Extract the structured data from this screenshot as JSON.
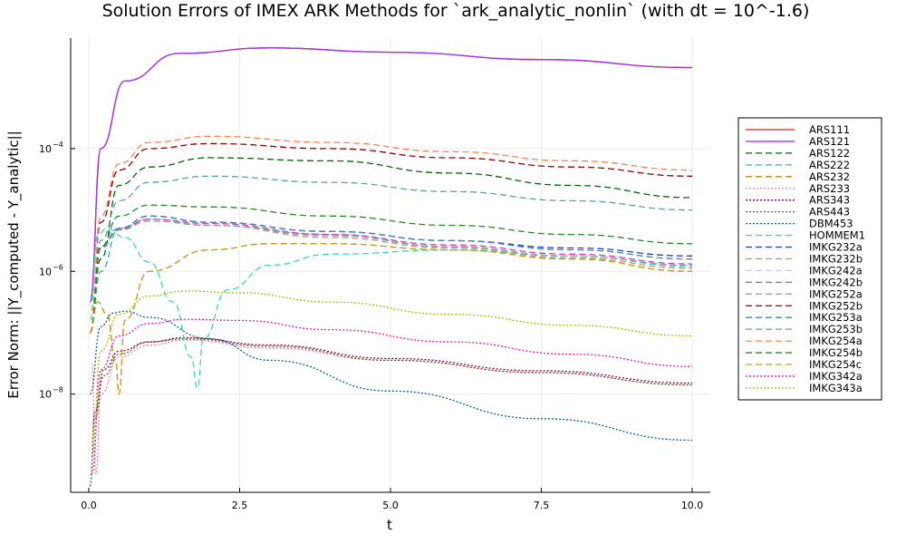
{
  "chart_data": {
    "type": "line",
    "title": "Solution Errors of IMEX ARK Methods for `ark_analytic_nonlin` (with dt = 10^-1.6)",
    "xlabel": "t",
    "ylabel": "Error Norm: ||Y_computed - Y_analytic||",
    "xlim": [
      -0.3,
      10.3
    ],
    "ylim_log10": [
      -9.6,
      -2.2
    ],
    "y_scale": "log",
    "grid": true,
    "legend_position": "right",
    "x_ticks": [
      0.0,
      2.5,
      5.0,
      7.5,
      10.0
    ],
    "x_tick_labels": [
      "0.0",
      "2.5",
      "5.0",
      "7.5",
      "10.0"
    ],
    "y_ticks_log10": [
      -4,
      -6,
      -8
    ],
    "y_tick_labels": [
      "10",
      "10",
      "10"
    ],
    "y_tick_exponents": [
      "−4",
      "−6",
      "−8"
    ],
    "series": [
      {
        "name": "ARS111",
        "color": "#e41a1c",
        "dash": "solid",
        "x": [
          0.02,
          0.2,
          0.6,
          1.5,
          3,
          5,
          7.5,
          10
        ],
        "log10y": [
          -6.5,
          -4.0,
          -2.9,
          -2.45,
          -2.36,
          -2.43,
          -2.55,
          -2.68
        ]
      },
      {
        "name": "ARS121",
        "color": "#9b30ff",
        "dash": "solid",
        "x": [
          0.02,
          0.2,
          0.6,
          1.5,
          3,
          5,
          7.5,
          10
        ],
        "log10y": [
          -6.5,
          -4.0,
          -2.9,
          -2.45,
          -2.36,
          -2.43,
          -2.55,
          -2.68
        ]
      },
      {
        "name": "ARS122",
        "color": "#006400",
        "dash": "dashed",
        "x": [
          0.02,
          0.2,
          0.5,
          1,
          2,
          4,
          6,
          8,
          10
        ],
        "log10y": [
          -7,
          -5.8,
          -4.6,
          -4.3,
          -4.15,
          -4.2,
          -4.4,
          -4.6,
          -4.8
        ]
      },
      {
        "name": "ARS222",
        "color": "#2bb5b0",
        "dash": "dashed",
        "x": [
          0.02,
          0.2,
          0.5,
          1,
          2,
          4,
          6,
          8,
          10
        ],
        "log10y": [
          -7,
          -6,
          -5.3,
          -5.15,
          -5.25,
          -5.4,
          -5.6,
          -5.75,
          -5.9
        ]
      },
      {
        "name": "ARS232",
        "color": "#b8860b",
        "dash": "dashed",
        "x": [
          0.02,
          0.15,
          0.3,
          0.45,
          0.5,
          0.6,
          1,
          2,
          3,
          4,
          6,
          8,
          10
        ],
        "log10y": [
          -7,
          -6.5,
          -6.7,
          -7.5,
          -8.0,
          -6.8,
          -6.0,
          -5.65,
          -5.55,
          -5.55,
          -5.65,
          -5.8,
          -6.0
        ]
      },
      {
        "name": "ARS233",
        "color": "#ff77aa",
        "dash": "dotted",
        "x": [
          0.05,
          0.12,
          0.2,
          0.5,
          1,
          1.6,
          3,
          5,
          7.5,
          10
        ],
        "log10y": [
          -7.5,
          -9.3,
          -8.0,
          -7.4,
          -7.2,
          -7.12,
          -7.25,
          -7.45,
          -7.65,
          -7.85
        ]
      },
      {
        "name": "ARS343",
        "color": "#8b0045",
        "dash": "dotted",
        "x": [
          0.02,
          0.1,
          0.25,
          0.5,
          1,
          1.6,
          3,
          5,
          7.5,
          10
        ],
        "log10y": [
          -9.5,
          -8.3,
          -7.6,
          -7.3,
          -7.15,
          -7.08,
          -7.2,
          -7.42,
          -7.62,
          -7.82
        ]
      },
      {
        "name": "ARS443",
        "color": "#556b2f",
        "dash": "dotted",
        "x": [
          0.02,
          0.1,
          0.25,
          0.5,
          1,
          1.6,
          3,
          5,
          7.5,
          10
        ],
        "log10y": [
          -9.5,
          -8.4,
          -7.7,
          -7.35,
          -7.15,
          -7.1,
          -7.22,
          -7.45,
          -7.65,
          -7.85
        ]
      },
      {
        "name": "DBM453",
        "color": "#00608a",
        "dash": "dotted",
        "x": [
          0.02,
          0.2,
          0.4,
          0.6,
          1,
          2,
          3,
          5,
          7.5,
          10
        ],
        "log10y": [
          -8,
          -6.9,
          -6.68,
          -6.65,
          -6.75,
          -7.1,
          -7.45,
          -7.95,
          -8.4,
          -8.75
        ]
      },
      {
        "name": "HOMMEM1",
        "color": "#3ad8b0",
        "dash": "dashed",
        "x": [
          0.02,
          0.15,
          0.3,
          0.6,
          1,
          1.4,
          1.7,
          1.8,
          1.9,
          2.3,
          3,
          4,
          6,
          8,
          10
        ],
        "log10y": [
          -6.8,
          -5.4,
          -5.3,
          -5.45,
          -5.85,
          -6.5,
          -7.4,
          -7.9,
          -7.1,
          -6.3,
          -5.9,
          -5.72,
          -5.65,
          -5.75,
          -5.9
        ]
      },
      {
        "name": "IMKG232a",
        "color": "#1e3cc8",
        "dash": "dashed",
        "x": [
          0.02,
          0.2,
          0.5,
          1,
          2,
          4,
          6,
          8,
          10
        ],
        "log10y": [
          -7,
          -5.6,
          -5.3,
          -5.1,
          -5.2,
          -5.35,
          -5.5,
          -5.62,
          -5.75
        ]
      },
      {
        "name": "IMKG232b",
        "color": "#b09a8a",
        "dash": "dashed",
        "x": [
          0.02,
          0.2,
          0.5,
          1,
          2,
          4,
          6,
          8,
          10
        ],
        "log10y": [
          -7,
          -5.62,
          -5.33,
          -5.18,
          -5.25,
          -5.45,
          -5.62,
          -5.78,
          -5.95
        ]
      },
      {
        "name": "IMKG242a",
        "color": "#c8c8f0",
        "dash": "dashed",
        "x": [
          0.02,
          0.2,
          0.5,
          1,
          2,
          4,
          6,
          8,
          10
        ],
        "log10y": [
          -7,
          -5.62,
          -5.32,
          -5.15,
          -5.22,
          -5.4,
          -5.57,
          -5.72,
          -5.88
        ]
      },
      {
        "name": "IMKG242b",
        "color": "#e040c0",
        "dash": "dashed",
        "x": [
          0.02,
          0.2,
          0.5,
          1,
          2,
          4,
          6,
          8,
          10
        ],
        "log10y": [
          -7,
          -5.62,
          -5.32,
          -5.15,
          -5.22,
          -5.4,
          -5.57,
          -5.72,
          -5.88
        ]
      },
      {
        "name": "IMKG252a",
        "color": "#a0a0a0",
        "dash": "dashed",
        "x": [
          0.02,
          0.2,
          0.5,
          1,
          2,
          4,
          6,
          8,
          10
        ],
        "log10y": [
          -7,
          -5.63,
          -5.33,
          -5.18,
          -5.25,
          -5.42,
          -5.6,
          -5.75,
          -5.92
        ]
      },
      {
        "name": "IMKG252b",
        "color": "#8b0000",
        "dash": "dashed",
        "x": [
          0.02,
          0.2,
          0.5,
          1,
          2,
          4,
          6,
          8,
          10
        ],
        "log10y": [
          -7,
          -5.2,
          -4.35,
          -4.0,
          -3.92,
          -4.0,
          -4.15,
          -4.3,
          -4.45
        ]
      },
      {
        "name": "IMKG253a",
        "color": "#4682b4",
        "dash": "dashed",
        "x": [
          0.02,
          0.2,
          0.5,
          1,
          2,
          4,
          6,
          8,
          10
        ],
        "log10y": [
          -7,
          -5.6,
          -5.3,
          -5.1,
          -5.2,
          -5.35,
          -5.5,
          -5.65,
          -5.8
        ]
      },
      {
        "name": "IMKG253b",
        "color": "#5f9ea0",
        "dash": "dashed",
        "x": [
          0.02,
          0.2,
          0.5,
          1,
          2,
          4,
          6,
          8,
          10
        ],
        "log10y": [
          -7,
          -5.5,
          -4.85,
          -4.55,
          -4.45,
          -4.55,
          -4.7,
          -4.85,
          -5.0
        ]
      },
      {
        "name": "IMKG254a",
        "color": "#ff7f50",
        "dash": "dashed",
        "x": [
          0.02,
          0.2,
          0.5,
          1,
          2,
          4,
          6,
          8,
          10
        ],
        "log10y": [
          -7,
          -5.1,
          -4.25,
          -3.9,
          -3.8,
          -3.9,
          -4.05,
          -4.2,
          -4.35
        ]
      },
      {
        "name": "IMKG254b",
        "color": "#228b22",
        "dash": "dashed",
        "x": [
          0.02,
          0.2,
          0.5,
          1,
          2,
          4,
          6,
          8,
          10
        ],
        "log10y": [
          -7,
          -5.6,
          -5.1,
          -4.92,
          -4.95,
          -5.1,
          -5.25,
          -5.4,
          -5.55
        ]
      },
      {
        "name": "IMKG254c",
        "color": "#c8a020",
        "dash": "dashed",
        "x": [
          0.02,
          0.15,
          0.3,
          0.45,
          0.5,
          0.6,
          1,
          2,
          3,
          4,
          6,
          8,
          10
        ],
        "log10y": [
          -7,
          -6.5,
          -6.7,
          -7.5,
          -8.0,
          -6.8,
          -6.0,
          -5.65,
          -5.55,
          -5.55,
          -5.65,
          -5.8,
          -6.0
        ]
      },
      {
        "name": "IMKG342a",
        "color": "#ff1493",
        "dash": "dotted",
        "x": [
          0.05,
          0.2,
          0.5,
          1,
          1.6,
          2.5,
          4,
          6,
          8,
          10
        ],
        "log10y": [
          -9.3,
          -7.6,
          -7.05,
          -6.85,
          -6.78,
          -6.8,
          -6.95,
          -7.15,
          -7.35,
          -7.55
        ]
      },
      {
        "name": "IMKG343a",
        "color": "#a8c000",
        "dash": "dotted",
        "x": [
          0.05,
          0.2,
          0.5,
          1,
          1.6,
          2.5,
          4,
          6,
          8,
          10
        ],
        "log10y": [
          -9.0,
          -7.3,
          -6.7,
          -6.4,
          -6.32,
          -6.35,
          -6.5,
          -6.7,
          -6.88,
          -7.05
        ]
      }
    ]
  }
}
